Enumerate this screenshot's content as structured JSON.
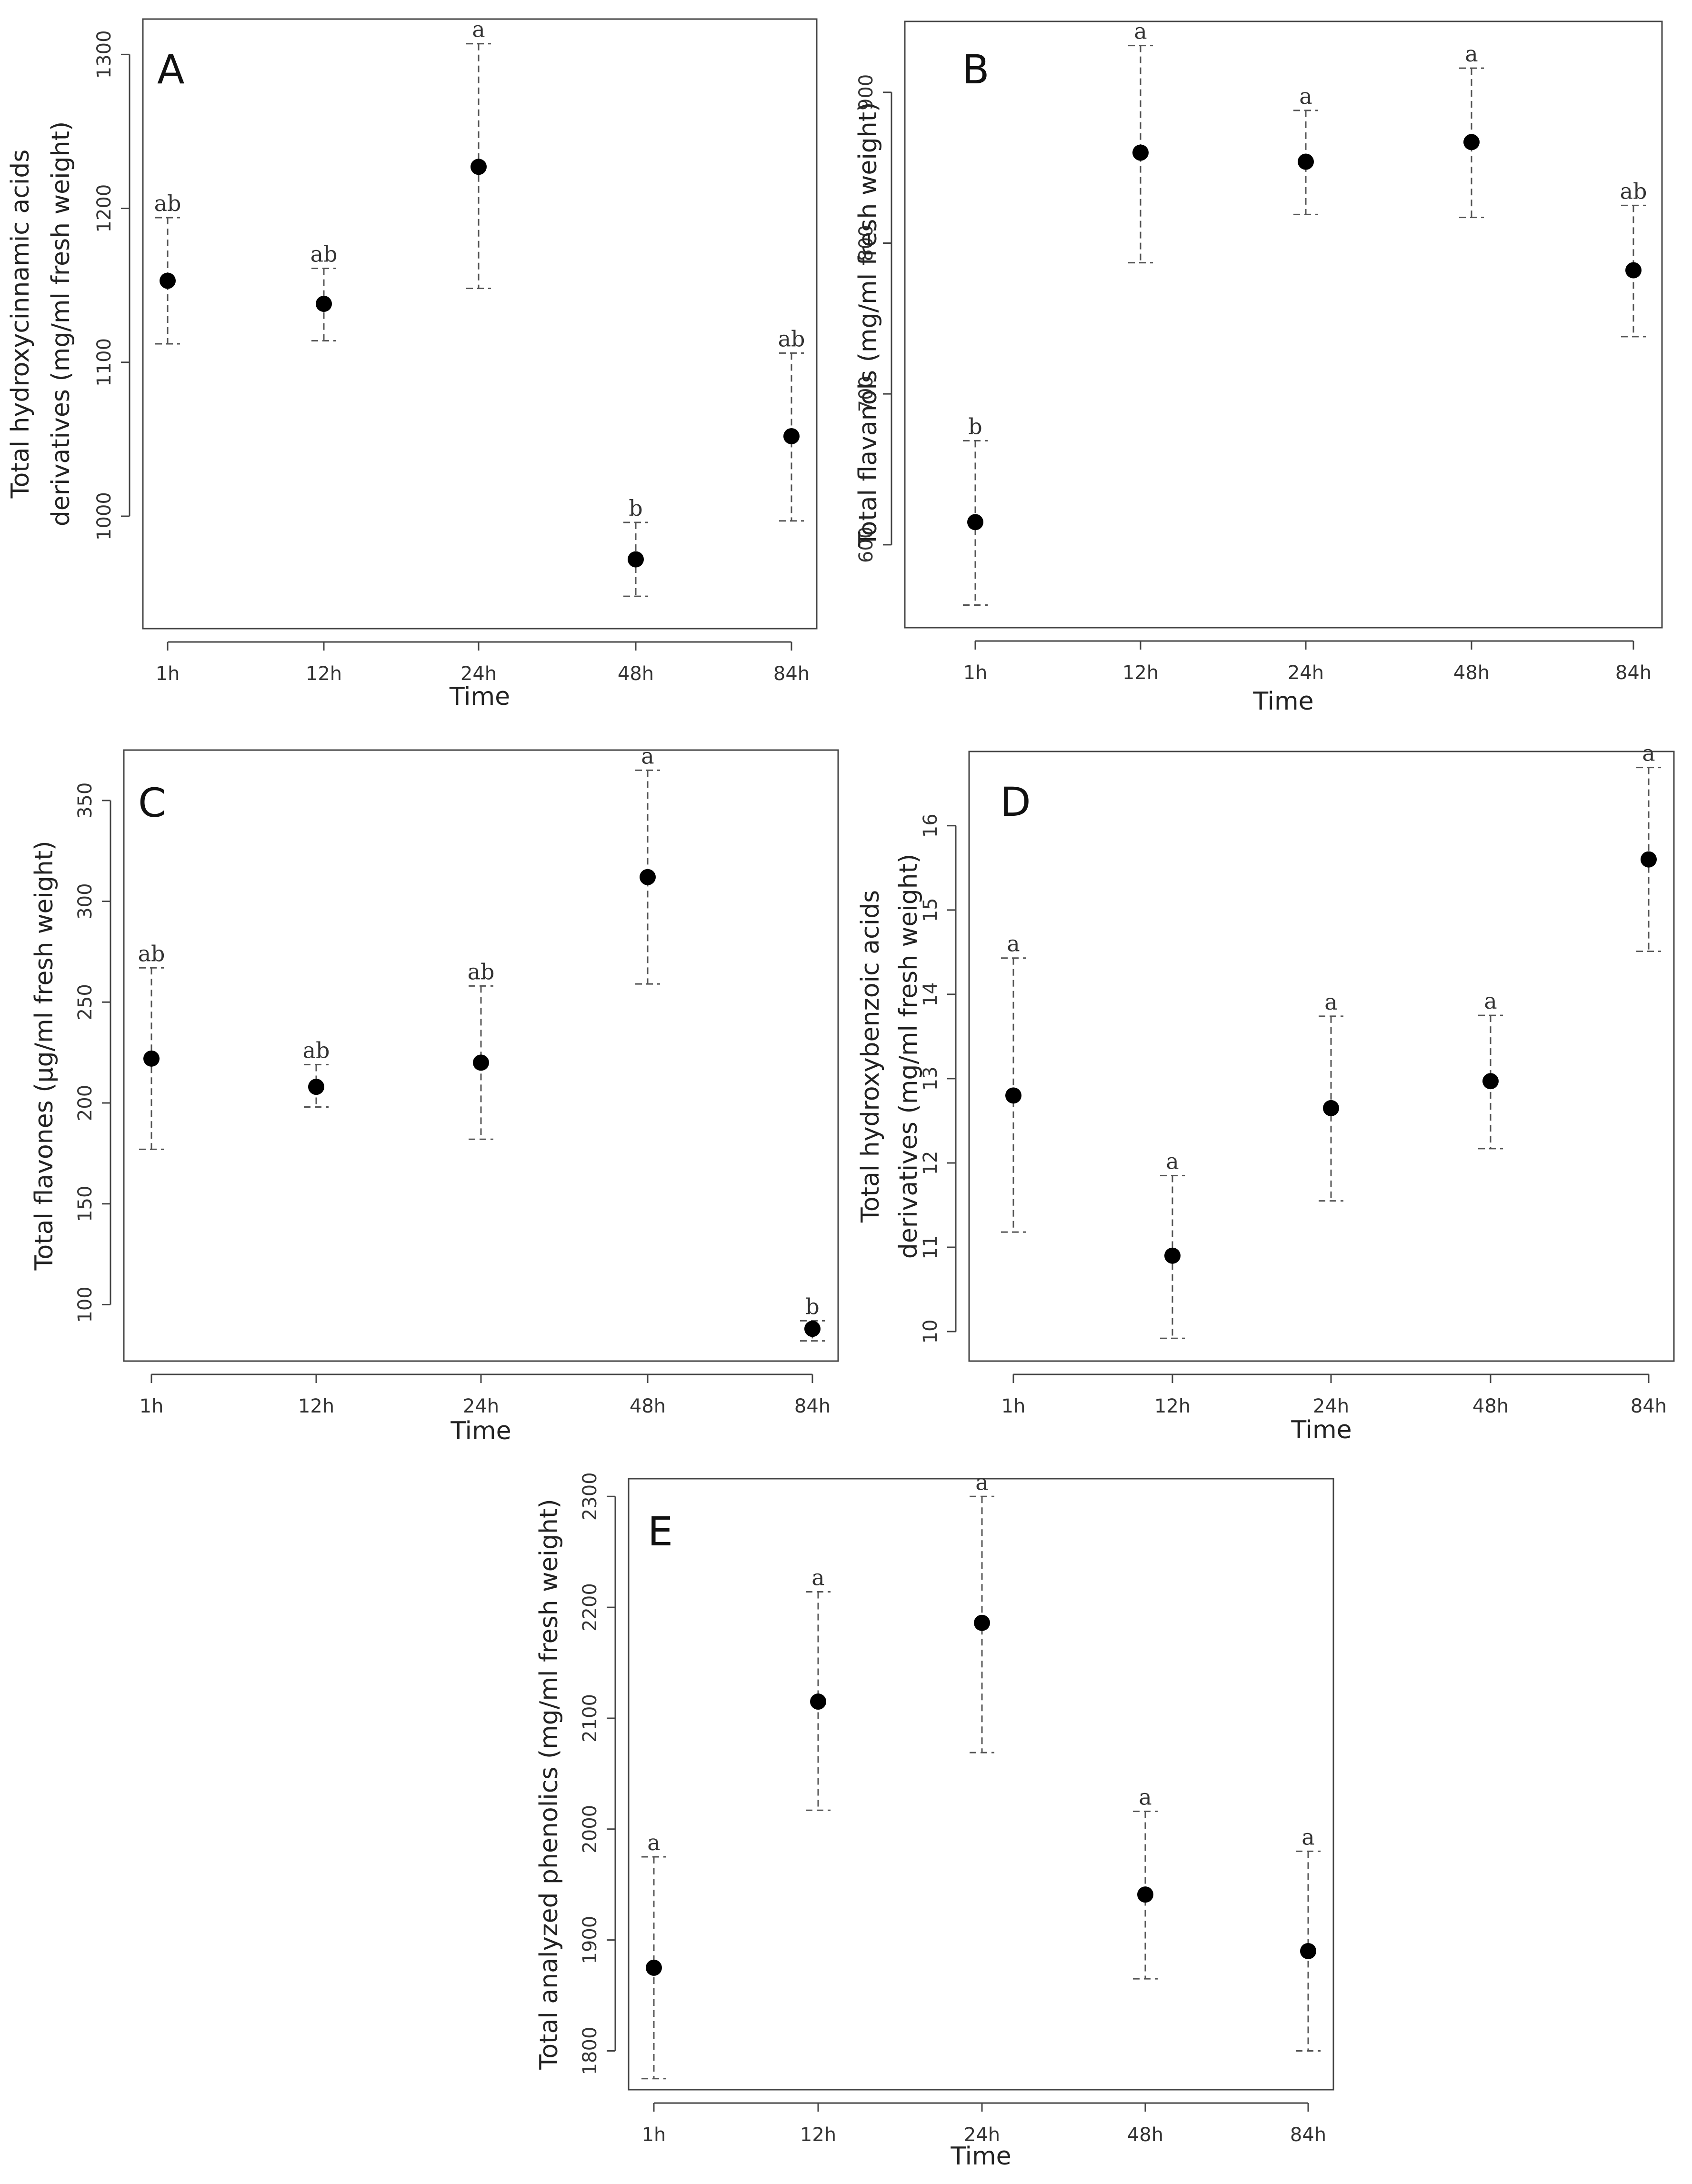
{
  "chart_data": [
    {
      "panel": "A",
      "type": "scatter",
      "categories": [
        "1h",
        "12h",
        "24h",
        "48h",
        "84h"
      ],
      "values": [
        1153,
        1138,
        1227,
        972,
        1052
      ],
      "error_low": [
        1112,
        1114,
        1148,
        948,
        997
      ],
      "error_high": [
        1194,
        1161,
        1307,
        996,
        1106
      ],
      "significance": [
        "ab",
        "ab",
        "a",
        "b",
        "ab"
      ],
      "xlabel": "Time",
      "ylabel": "Total hydroxycinnamic acids derivatives (mg/ml fresh weight)",
      "ylabel_lines": [
        "Total hydroxycinnamic acids",
        "derivatives (mg/ml fresh weight)"
      ],
      "yticks": [
        1000,
        1100,
        1200,
        1300
      ],
      "ylim": [
        927,
        1323
      ],
      "grid": false
    },
    {
      "panel": "B",
      "type": "scatter",
      "categories": [
        "1h",
        "12h",
        "24h",
        "48h",
        "84h"
      ],
      "values": [
        615,
        860,
        854,
        867,
        782
      ],
      "error_low": [
        560,
        787,
        819,
        817,
        738
      ],
      "error_high": [
        669,
        931,
        888,
        916,
        825
      ],
      "significance": [
        "b",
        "a",
        "a",
        "a",
        "ab"
      ],
      "xlabel": "Time",
      "ylabel": "Total flavanols (mg/ml fresh weight)",
      "ylabel_lines": [
        "Total flavanols (mg/ml fresh weight)"
      ],
      "yticks": [
        600,
        700,
        800,
        900
      ],
      "ylim": [
        545,
        947
      ],
      "grid": false
    },
    {
      "panel": "C",
      "type": "scatter",
      "categories": [
        "1h",
        "12h",
        "24h",
        "48h",
        "84h"
      ],
      "values": [
        222,
        208,
        220,
        312,
        88
      ],
      "error_low": [
        177,
        198,
        182,
        259,
        82
      ],
      "error_high": [
        267,
        219,
        258,
        365,
        92
      ],
      "significance": [
        "ab",
        "ab",
        "ab",
        "a",
        "b"
      ],
      "xlabel": "Time",
      "ylabel": "Total flavones (µg/ml fresh weight)",
      "ylabel_lines": [
        "Total flavones (µg/ml fresh weight)"
      ],
      "yticks": [
        100,
        150,
        200,
        250,
        300,
        350
      ],
      "ylim": [
        72,
        375
      ],
      "grid": false
    },
    {
      "panel": "D",
      "type": "scatter",
      "categories": [
        "1h",
        "12h",
        "24h",
        "48h",
        "84h"
      ],
      "values": [
        12.8,
        10.9,
        12.65,
        12.97,
        15.6
      ],
      "error_low": [
        11.18,
        9.92,
        11.55,
        12.17,
        14.51
      ],
      "error_high": [
        14.43,
        11.85,
        13.74,
        13.75,
        16.69
      ],
      "significance": [
        "a",
        "a",
        "a",
        "a",
        "a"
      ],
      "xlabel": "Time",
      "ylabel": "Total hydroxybenzoic acids derivatives (mg/ml fresh weight)",
      "ylabel_lines": [
        "Total hydroxybenzoic acids",
        "derivatives (mg/ml fresh weight)"
      ],
      "yticks": [
        10,
        11,
        12,
        13,
        14,
        15,
        16
      ],
      "ylim": [
        9.65,
        16.88
      ],
      "grid": false
    },
    {
      "panel": "E",
      "type": "scatter",
      "categories": [
        "1h",
        "12h",
        "24h",
        "48h",
        "84h"
      ],
      "values": [
        1875,
        2115,
        2186,
        1941,
        1890
      ],
      "error_low": [
        1775,
        2017,
        2069,
        1865,
        1800
      ],
      "error_high": [
        1975,
        2214,
        2300,
        2016,
        1980
      ],
      "significance": [
        "a",
        "a",
        "a",
        "a",
        "a"
      ],
      "xlabel": "Time",
      "ylabel": "Total analyzed phenolics (mg/ml fresh weight)",
      "ylabel_lines": [
        "Total analyzed phenolics (mg/ml fresh weight)"
      ],
      "yticks": [
        1800,
        1900,
        2000,
        2100,
        2200,
        2300
      ],
      "ylim": [
        1765,
        2316
      ],
      "grid": false
    }
  ]
}
